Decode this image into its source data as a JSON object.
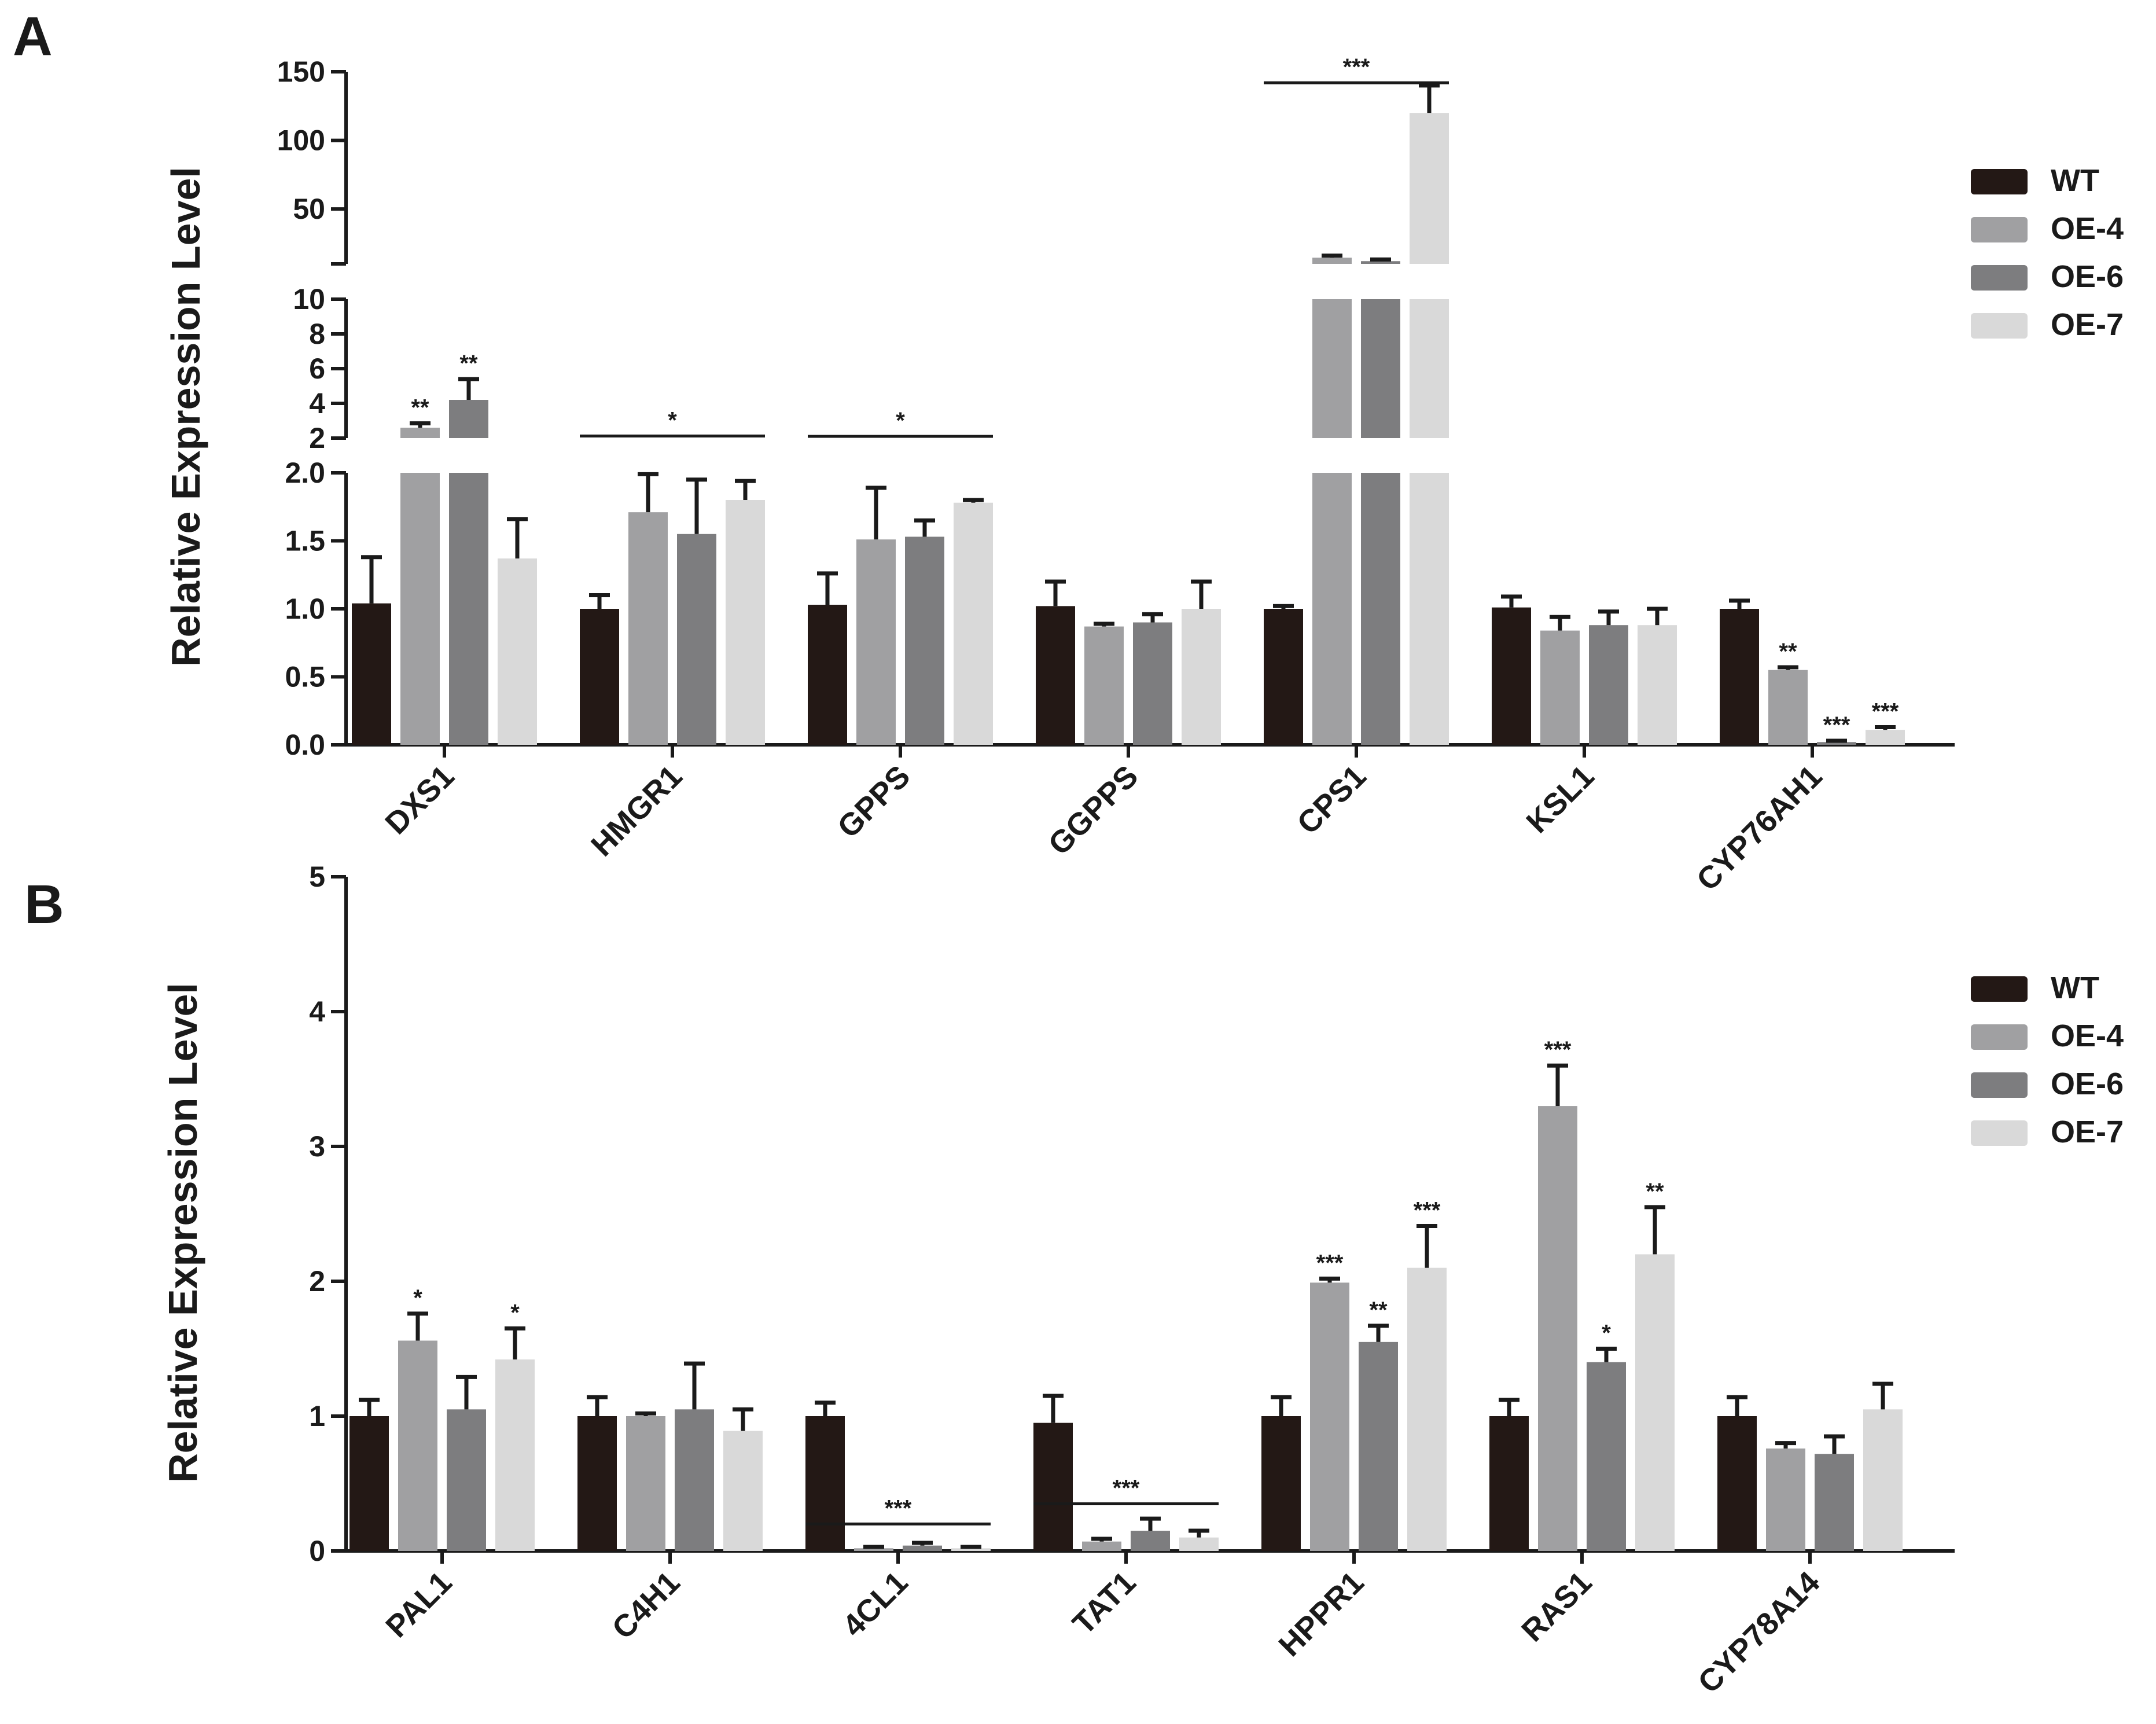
{
  "colors": {
    "WT": "#231815",
    "OE-4": "#a0a0a2",
    "OE-6": "#7d7d7f",
    "OE-7": "#d9d9d9",
    "axis": "#1a1a1a"
  },
  "chart_data": [
    {
      "panel": "A",
      "type": "bar",
      "ylabel": "Relative Expression Level",
      "categories": [
        "DXS1",
        "HMGR1",
        "GPPS",
        "GGPPS",
        "CPS1",
        "KSL1",
        "CYP76AH1"
      ],
      "series_names": [
        "WT",
        "OE-4",
        "OE-6",
        "OE-7"
      ],
      "broken_axis": [
        {
          "range": [
            0,
            2
          ],
          "ticks": [
            "0.0",
            "0.5",
            "1.0",
            "1.5",
            "2.0"
          ],
          "tick_values": [
            0,
            0.5,
            1,
            1.5,
            2
          ]
        },
        {
          "range": [
            2,
            10
          ],
          "ticks": [
            "2",
            "4",
            "6",
            "8",
            "10"
          ],
          "tick_values": [
            2,
            4,
            6,
            8,
            10
          ]
        },
        {
          "range": [
            10,
            150
          ],
          "ticks": [
            "50",
            "100",
            "150"
          ],
          "tick_values": [
            50,
            100,
            150
          ]
        }
      ],
      "series": [
        {
          "name": "WT",
          "values": [
            1.04,
            1.0,
            1.03,
            1.02,
            1.0,
            1.01,
            1.0
          ],
          "errors": [
            0.34,
            0.1,
            0.23,
            0.18,
            0.02,
            0.08,
            0.06
          ]
        },
        {
          "name": "OE-4",
          "values": [
            2.6,
            1.71,
            1.51,
            0.87,
            14.5,
            0.84,
            0.55
          ],
          "errors": [
            0.25,
            0.28,
            0.38,
            0.02,
            1.5,
            0.1,
            0.02
          ]
        },
        {
          "name": "OE-6",
          "values": [
            4.2,
            1.55,
            1.53,
            0.9,
            12.0,
            0.88,
            0.02
          ],
          "errors": [
            1.2,
            0.4,
            0.12,
            0.06,
            1.2,
            0.1,
            0.01
          ]
        },
        {
          "name": "OE-7",
          "values": [
            1.37,
            1.8,
            1.78,
            1.0,
            120,
            0.88,
            0.11
          ],
          "errors": [
            0.29,
            0.14,
            0.02,
            0.2,
            20,
            0.12,
            0.02
          ]
        }
      ],
      "point_annotations": [
        {
          "category": "DXS1",
          "series": "OE-4",
          "label": "**"
        },
        {
          "category": "DXS1",
          "series": "OE-6",
          "label": "**"
        },
        {
          "category": "CYP76AH1",
          "series": "OE-4",
          "label": "**"
        },
        {
          "category": "CYP76AH1",
          "series": "OE-6",
          "label": "***"
        },
        {
          "category": "CYP76AH1",
          "series": "OE-7",
          "label": "***"
        }
      ],
      "group_annotations": [
        {
          "category": "HMGR1",
          "label": "*",
          "level": 2.12
        },
        {
          "category": "GPPS",
          "label": "*",
          "level": 2.1
        },
        {
          "category": "CPS1",
          "label": "***",
          "level": 142
        }
      ]
    },
    {
      "panel": "B",
      "type": "bar",
      "ylabel": "Relative Expression Level",
      "categories": [
        "PAL1",
        "C4H1",
        "4CL1",
        "TAT1",
        "HPPR1",
        "RAS1",
        "CYP78A14"
      ],
      "series_names": [
        "WT",
        "OE-4",
        "OE-6",
        "OE-7"
      ],
      "ylim": [
        0,
        5
      ],
      "yticks": [
        "0",
        "1",
        "2",
        "3",
        "4",
        "5"
      ],
      "ytick_values": [
        0,
        1,
        2,
        3,
        4,
        5
      ],
      "series": [
        {
          "name": "WT",
          "values": [
            1.0,
            1.0,
            1.0,
            0.95,
            1.0,
            1.0,
            1.0
          ],
          "errors": [
            0.12,
            0.14,
            0.1,
            0.2,
            0.14,
            0.12,
            0.14
          ]
        },
        {
          "name": "OE-4",
          "values": [
            1.56,
            1.0,
            0.02,
            0.07,
            1.99,
            3.3,
            0.76
          ],
          "errors": [
            0.2,
            0.02,
            0.01,
            0.02,
            0.03,
            0.3,
            0.04
          ]
        },
        {
          "name": "OE-6",
          "values": [
            1.05,
            1.05,
            0.04,
            0.15,
            1.55,
            1.4,
            0.72
          ],
          "errors": [
            0.24,
            0.34,
            0.02,
            0.09,
            0.12,
            0.1,
            0.13
          ]
        },
        {
          "name": "OE-7",
          "values": [
            1.42,
            0.89,
            0.02,
            0.1,
            2.1,
            2.2,
            1.05
          ],
          "errors": [
            0.23,
            0.16,
            0.01,
            0.05,
            0.31,
            0.35,
            0.19
          ]
        }
      ],
      "point_annotations": [
        {
          "category": "PAL1",
          "series": "OE-4",
          "label": "*"
        },
        {
          "category": "PAL1",
          "series": "OE-7",
          "label": "*"
        },
        {
          "category": "HPPR1",
          "series": "OE-4",
          "label": "***"
        },
        {
          "category": "HPPR1",
          "series": "OE-6",
          "label": "**"
        },
        {
          "category": "HPPR1",
          "series": "OE-7",
          "label": "***"
        },
        {
          "category": "RAS1",
          "series": "OE-4",
          "label": "***"
        },
        {
          "category": "RAS1",
          "series": "OE-6",
          "label": "*"
        },
        {
          "category": "RAS1",
          "series": "OE-7",
          "label": "**"
        }
      ],
      "group_annotations": [
        {
          "category": "4CL1",
          "label": "***",
          "level": 0.2
        },
        {
          "category": "TAT1",
          "label": "***",
          "level": 0.35
        }
      ]
    }
  ]
}
